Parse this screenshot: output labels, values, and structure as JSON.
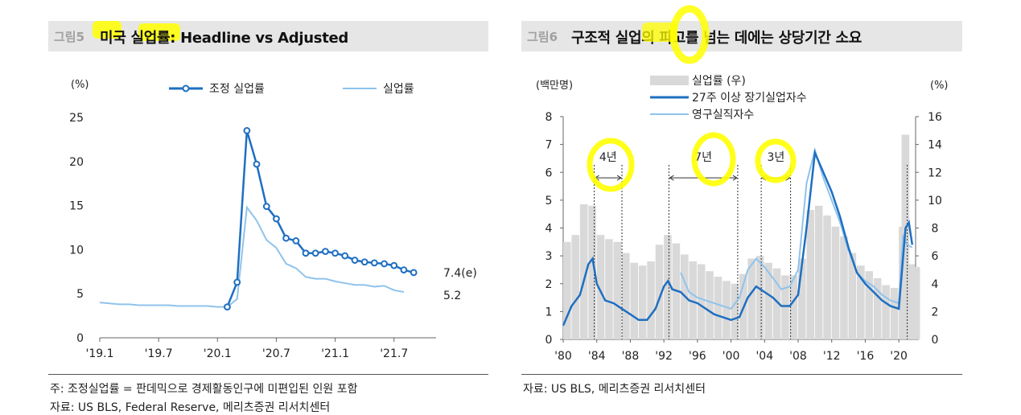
{
  "left": {
    "fig_no": "그림5",
    "title": "미국 실업률: Headline vs Adjusted",
    "note": "주: 조정실업률 = 판데믹으로 경제활동인구에 미편입된 인원 포함",
    "source": "자료: US BLS, Federal Reserve, 메리츠증권 리서치센터"
  },
  "right": {
    "fig_no": "그림6",
    "title": "구조적 실업의 파고를 넘는 데에는 상당기간 소요",
    "source": "자료: US BLS, 메리츠증권 리서치센터"
  },
  "colors": {
    "adjusted": "#1f6fc1",
    "headline": "#8fc3ec",
    "bars": "#d9d9d9",
    "highlight": "#ffff00"
  },
  "chart_data": [
    {
      "type": "line",
      "title": "미국 실업률: Headline vs Adjusted",
      "ylabel": "(%)",
      "ylim": [
        0,
        25
      ],
      "yticks": [
        "0",
        "5",
        "10",
        "15",
        "20",
        "25"
      ],
      "xlim": [
        2019.0,
        2021.83
      ],
      "xticks": [
        {
          "label": "'19.1",
          "x": 2019.0
        },
        {
          "label": "'19.7",
          "x": 2019.5
        },
        {
          "label": "'20.1",
          "x": 2020.0
        },
        {
          "label": "'20.7",
          "x": 2020.5
        },
        {
          "label": "'21.1",
          "x": 2021.0
        },
        {
          "label": "'21.7",
          "x": 2021.5
        }
      ],
      "legend": "top",
      "grid": false,
      "series": [
        {
          "name": "조정 실업률",
          "markers": true,
          "end_label": "7.4(e)",
          "points": [
            [
              2020.083,
              3.5
            ],
            [
              2020.167,
              6.3
            ],
            [
              2020.25,
              23.5
            ],
            [
              2020.333,
              19.7
            ],
            [
              2020.417,
              14.9
            ],
            [
              2020.5,
              13.5
            ],
            [
              2020.583,
              11.3
            ],
            [
              2020.667,
              11.0
            ],
            [
              2020.75,
              9.6
            ],
            [
              2020.833,
              9.6
            ],
            [
              2020.917,
              9.8
            ],
            [
              2021.0,
              9.6
            ],
            [
              2021.083,
              9.3
            ],
            [
              2021.167,
              8.8
            ],
            [
              2021.25,
              8.6
            ],
            [
              2021.333,
              8.5
            ],
            [
              2021.417,
              8.4
            ],
            [
              2021.5,
              8.2
            ],
            [
              2021.583,
              7.7
            ],
            [
              2021.667,
              7.4
            ]
          ]
        },
        {
          "name": "실업률",
          "markers": false,
          "end_label": "5.2",
          "points": [
            [
              2019.0,
              4.0
            ],
            [
              2019.083,
              3.9
            ],
            [
              2019.167,
              3.8
            ],
            [
              2019.25,
              3.8
            ],
            [
              2019.333,
              3.7
            ],
            [
              2019.417,
              3.7
            ],
            [
              2019.5,
              3.7
            ],
            [
              2019.583,
              3.7
            ],
            [
              2019.667,
              3.6
            ],
            [
              2019.75,
              3.6
            ],
            [
              2019.833,
              3.6
            ],
            [
              2019.917,
              3.6
            ],
            [
              2020.0,
              3.5
            ],
            [
              2020.083,
              3.5
            ],
            [
              2020.167,
              4.4
            ],
            [
              2020.25,
              14.8
            ],
            [
              2020.333,
              13.3
            ],
            [
              2020.417,
              11.1
            ],
            [
              2020.5,
              10.2
            ],
            [
              2020.583,
              8.4
            ],
            [
              2020.667,
              7.9
            ],
            [
              2020.75,
              6.9
            ],
            [
              2020.833,
              6.7
            ],
            [
              2020.917,
              6.7
            ],
            [
              2021.0,
              6.4
            ],
            [
              2021.083,
              6.2
            ],
            [
              2021.167,
              6.0
            ],
            [
              2021.25,
              6.0
            ],
            [
              2021.333,
              5.8
            ],
            [
              2021.417,
              5.9
            ],
            [
              2021.5,
              5.4
            ],
            [
              2021.583,
              5.2
            ]
          ]
        }
      ]
    },
    {
      "type": "line",
      "title": "구조적 실업의 파고를 넘는 데에는 상당기간 소요",
      "ylabel_left": "(백만명)",
      "ylabel_right": "(%)",
      "ylim_left": [
        0,
        8
      ],
      "ylim_right": [
        0,
        16
      ],
      "yticks_left": [
        "0",
        "1",
        "2",
        "3",
        "4",
        "5",
        "6",
        "7",
        "8"
      ],
      "yticks_right": [
        "0",
        "2",
        "4",
        "6",
        "8",
        "10",
        "12",
        "14",
        "16"
      ],
      "xlim": [
        1980,
        2022
      ],
      "xticks": [
        {
          "label": "'80",
          "x": 1980
        },
        {
          "label": "'84",
          "x": 1984
        },
        {
          "label": "'88",
          "x": 1988
        },
        {
          "label": "'92",
          "x": 1992
        },
        {
          "label": "'96",
          "x": 1996
        },
        {
          "label": "'00",
          "x": 2000
        },
        {
          "label": "'04",
          "x": 2004
        },
        {
          "label": "'08",
          "x": 2008
        },
        {
          "label": "'12",
          "x": 2012
        },
        {
          "label": "'16",
          "x": 2016
        },
        {
          "label": "'20",
          "x": 2020
        }
      ],
      "legend": "top",
      "series": [
        {
          "name": "실업률 (우)",
          "kind": "bar",
          "axis": "right",
          "points": [
            [
              1980,
              7.0
            ],
            [
              1981,
              7.5
            ],
            [
              1982,
              9.7
            ],
            [
              1983,
              9.6
            ],
            [
              1984,
              7.5
            ],
            [
              1985,
              7.2
            ],
            [
              1986,
              7.0
            ],
            [
              1987,
              6.2
            ],
            [
              1988,
              5.5
            ],
            [
              1989,
              5.3
            ],
            [
              1990,
              5.6
            ],
            [
              1991,
              6.8
            ],
            [
              1992,
              7.5
            ],
            [
              1993,
              6.9
            ],
            [
              1994,
              6.1
            ],
            [
              1995,
              5.6
            ],
            [
              1996,
              5.4
            ],
            [
              1997,
              4.9
            ],
            [
              1998,
              4.5
            ],
            [
              1999,
              4.2
            ],
            [
              2000,
              4.0
            ],
            [
              2001,
              4.7
            ],
            [
              2002,
              5.8
            ],
            [
              2003,
              6.0
            ],
            [
              2004,
              5.5
            ],
            [
              2005,
              5.1
            ],
            [
              2006,
              4.6
            ],
            [
              2007,
              4.6
            ],
            [
              2008,
              5.8
            ],
            [
              2009,
              9.3
            ],
            [
              2010,
              9.6
            ],
            [
              2011,
              8.9
            ],
            [
              2012,
              8.1
            ],
            [
              2013,
              7.4
            ],
            [
              2014,
              6.2
            ],
            [
              2015,
              5.3
            ],
            [
              2016,
              4.9
            ],
            [
              2017,
              4.4
            ],
            [
              2018,
              3.9
            ],
            [
              2019,
              3.7
            ],
            [
              2020,
              8.1
            ],
            [
              2020.33,
              14.7
            ],
            [
              2021,
              5.4
            ],
            [
              2021.6,
              5.2
            ]
          ]
        },
        {
          "name": "27주 이상 장기실업자수",
          "kind": "line",
          "axis": "left",
          "points": [
            [
              1980,
              0.5
            ],
            [
              1981,
              1.2
            ],
            [
              1982,
              1.6
            ],
            [
              1983,
              2.7
            ],
            [
              1983.5,
              2.9
            ],
            [
              1984,
              2.0
            ],
            [
              1985,
              1.4
            ],
            [
              1986,
              1.3
            ],
            [
              1987,
              1.1
            ],
            [
              1988,
              0.9
            ],
            [
              1989,
              0.7
            ],
            [
              1990,
              0.7
            ],
            [
              1991,
              1.1
            ],
            [
              1992,
              1.9
            ],
            [
              1992.5,
              2.1
            ],
            [
              1993,
              1.8
            ],
            [
              1994,
              1.7
            ],
            [
              1995,
              1.4
            ],
            [
              1996,
              1.3
            ],
            [
              1997,
              1.1
            ],
            [
              1998,
              0.9
            ],
            [
              1999,
              0.8
            ],
            [
              2000,
              0.7
            ],
            [
              2001,
              0.8
            ],
            [
              2002,
              1.5
            ],
            [
              2003,
              1.9
            ],
            [
              2004,
              1.7
            ],
            [
              2005,
              1.5
            ],
            [
              2006,
              1.2
            ],
            [
              2007,
              1.2
            ],
            [
              2008,
              1.6
            ],
            [
              2009,
              4.0
            ],
            [
              2010,
              6.7
            ],
            [
              2011,
              6.0
            ],
            [
              2012,
              5.3
            ],
            [
              2013,
              4.4
            ],
            [
              2014,
              3.3
            ],
            [
              2015,
              2.4
            ],
            [
              2016,
              2.0
            ],
            [
              2017,
              1.7
            ],
            [
              2018,
              1.4
            ],
            [
              2019,
              1.2
            ],
            [
              2020,
              1.1
            ],
            [
              2020.8,
              4.0
            ],
            [
              2021.2,
              4.2
            ],
            [
              2021.6,
              3.4
            ]
          ]
        },
        {
          "name": "영구실직자수",
          "kind": "line",
          "axis": "left",
          "points": [
            [
              1994,
              2.4
            ],
            [
              1995,
              1.7
            ],
            [
              1996,
              1.5
            ],
            [
              1997,
              1.4
            ],
            [
              1998,
              1.3
            ],
            [
              1999,
              1.2
            ],
            [
              2000,
              1.1
            ],
            [
              2001,
              1.5
            ],
            [
              2002,
              2.5
            ],
            [
              2003,
              2.9
            ],
            [
              2004,
              2.6
            ],
            [
              2005,
              2.2
            ],
            [
              2006,
              1.8
            ],
            [
              2007,
              1.9
            ],
            [
              2008,
              2.5
            ],
            [
              2009,
              5.6
            ],
            [
              2010,
              6.8
            ],
            [
              2011,
              5.8
            ],
            [
              2012,
              5.0
            ],
            [
              2013,
              4.2
            ],
            [
              2014,
              3.2
            ],
            [
              2015,
              2.4
            ],
            [
              2016,
              2.1
            ],
            [
              2017,
              1.9
            ],
            [
              2018,
              1.6
            ],
            [
              2019,
              1.4
            ],
            [
              2020,
              1.3
            ],
            [
              2020.5,
              3.7
            ],
            [
              2021,
              3.4
            ],
            [
              2021.6,
              3.3
            ]
          ]
        }
      ],
      "reference_lines": [
        1983.7,
        1987.0,
        1992.6,
        2000.8,
        2003.6,
        2007.1,
        2021.0
      ],
      "annotations": [
        {
          "text": "4년",
          "from": 1983.7,
          "to": 1987.0,
          "y": 5.8
        },
        {
          "text": "7년",
          "from": 1992.6,
          "to": 2000.8,
          "y": 5.8
        },
        {
          "text": "3년",
          "from": 2003.6,
          "to": 2007.1,
          "y": 5.8
        }
      ]
    }
  ]
}
